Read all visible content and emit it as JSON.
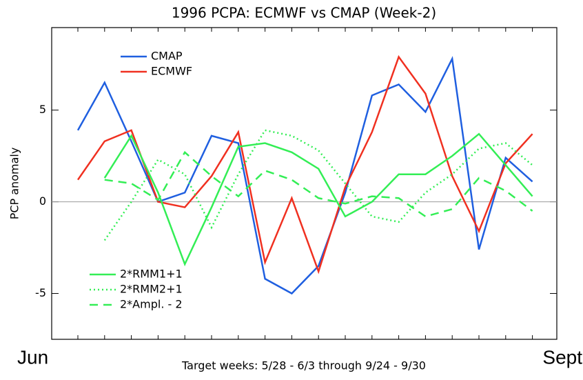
{
  "chart_data": {
    "type": "line",
    "title": "1996 PCPA: ECMWF vs CMAP (Week-2)",
    "xlabel": "Target weeks: 5/28 - 6/3 through 9/24 - 9/30",
    "ylabel": "PCP anomaly",
    "annotations": [
      "Jun",
      "Sept"
    ],
    "categories": [
      null,
      null,
      null,
      null,
      null,
      null,
      null,
      null,
      null,
      null,
      null,
      null,
      null,
      null,
      null,
      null,
      null,
      null
    ],
    "series": [
      {
        "name": "CMAP",
        "color": "#1f5fe0",
        "dash": "solid",
        "values": [
          3.9,
          6.5,
          3.3,
          0,
          0.5,
          3.6,
          3.2,
          -4.2,
          -5.0,
          -3.5,
          0.5,
          5.8,
          6.4,
          4.9,
          7.8,
          -2.6,
          2.4,
          1.1
        ]
      },
      {
        "name": "ECMWF",
        "color": "#f03020",
        "dash": "solid",
        "values": [
          1.2,
          3.3,
          3.9,
          0,
          -0.3,
          1.4,
          3.8,
          -3.3,
          0.2,
          -3.8,
          0.8,
          3.8,
          7.9,
          5.9,
          1.4,
          -1.6,
          2.1,
          3.7
        ]
      },
      {
        "name": "2*RMM1+1",
        "color": "#33ee55",
        "dash": "solid",
        "values": [
          null,
          1.3,
          3.6,
          0.5,
          -3.4,
          -0.3,
          3.0,
          3.2,
          2.7,
          1.8,
          -0.8,
          0,
          1.5,
          1.5,
          2.5,
          3.7,
          2.0,
          0.3
        ]
      },
      {
        "name": "2*RMM2+1",
        "color": "#33ee55",
        "dash": "dotted",
        "values": [
          null,
          -2.1,
          0,
          2.3,
          1.5,
          -1.4,
          1.5,
          3.9,
          3.6,
          2.8,
          1.0,
          -0.8,
          -1.1,
          0.5,
          1.5,
          2.9,
          3.2,
          2.0
        ]
      },
      {
        "name": "2*Ampl. - 2",
        "color": "#33ee55",
        "dash": "dashed",
        "values": [
          null,
          1.2,
          1.0,
          0.1,
          2.7,
          1.4,
          0.3,
          1.7,
          1.2,
          0.2,
          -0.1,
          0.3,
          0.2,
          -0.8,
          -0.4,
          1.3,
          0.6,
          -0.5
        ]
      }
    ],
    "ylim": [
      -7.5,
      9.5
    ],
    "yticks": [
      -5,
      0,
      5
    ]
  }
}
